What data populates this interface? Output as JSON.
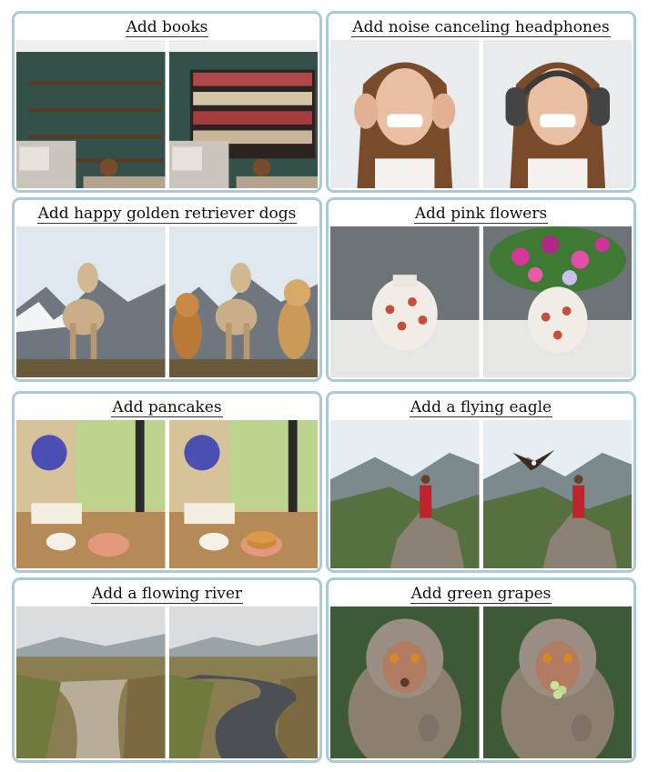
{
  "panels": [
    {
      "caption": "Add books"
    },
    {
      "caption": "Add noise canceling headphones"
    },
    {
      "caption": "Add happy golden retriever dogs"
    },
    {
      "caption": "Add pink flowers"
    },
    {
      "caption": "Add pancakes"
    },
    {
      "caption": "Add a flying eagle"
    },
    {
      "caption": "Add a flowing river"
    },
    {
      "caption": "Add green grapes"
    }
  ]
}
